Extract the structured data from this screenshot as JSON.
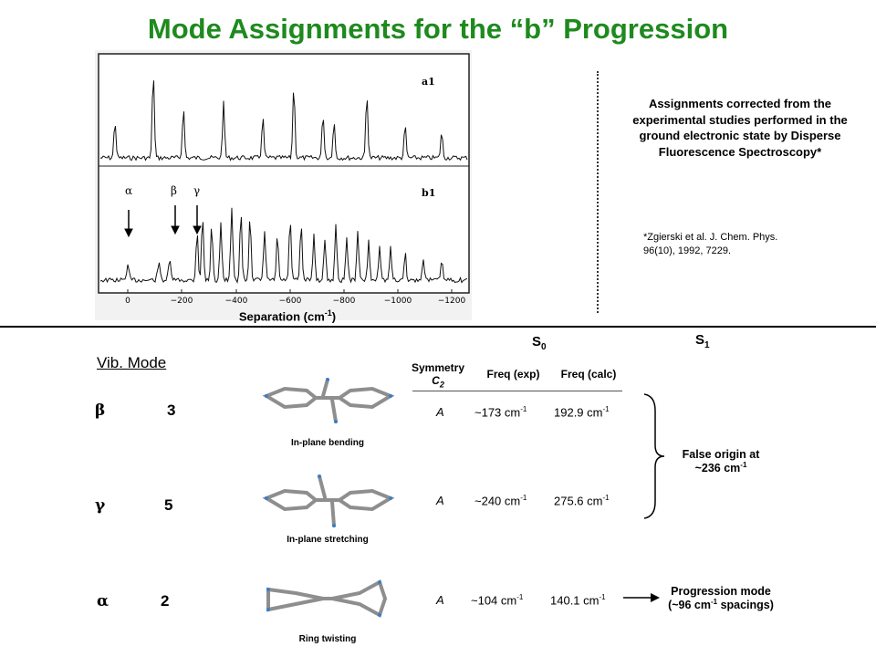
{
  "title": "Mode Assignments for the “b” Progression",
  "spectrum": {
    "top_trace_label": "a1",
    "bottom_trace_label": "b1",
    "arrow_labels": [
      "α",
      "β",
      "γ"
    ],
    "axis_ticks": [
      "0",
      "−200",
      "−400",
      "−600",
      "−800",
      "−1000",
      "−1200"
    ],
    "axis_label": "Separation (cm",
    "axis_label_sup": "-1",
    "axis_label_end": ")"
  },
  "assignments_note": "Assignments corrected from the experimental studies performed in the ground electronic state by Disperse Fluorescence Spectroscopy*",
  "reference": {
    "line1": "*Zgierski et al. J. Chem. Phys.",
    "line2": "96(10),  1992, 7229."
  },
  "table": {
    "vib_mode_header": "Vib. Mode",
    "s0_label": "S",
    "s0_sub": "0",
    "s1_label": "S",
    "s1_sub": "1",
    "symmetry_header": "Symmetry",
    "symmetry_group": "C",
    "symmetry_group_sub": "2",
    "freq_exp_header": "Freq (exp)",
    "freq_calc_header": "Freq (calc)",
    "unit_sup": "-1",
    "rows": [
      {
        "greek": "β",
        "mode": "3",
        "motion": "In-plane bending",
        "symmetry": "A",
        "freq_exp": "~173 cm",
        "freq_calc": "192.9 cm"
      },
      {
        "greek": "γ",
        "mode": "5",
        "motion": "In-plane stretching",
        "symmetry": "A",
        "freq_exp": "~240 cm",
        "freq_calc": "275.6 cm"
      },
      {
        "greek": "α",
        "mode": "2",
        "motion": "Ring twisting",
        "symmetry": "A",
        "freq_exp": "~104 cm",
        "freq_calc": "140.1 cm"
      }
    ],
    "false_origin_line1": "False origin at",
    "false_origin_line2": "~236 cm",
    "progression_line1": "Progression mode",
    "progression_line2": "(~96 cm",
    "progression_line2_end": " spacings)"
  },
  "colors": {
    "title": "#1e8a1e",
    "molecule": "#9a9a9a",
    "molecule_accent": "#3b7fc4"
  }
}
